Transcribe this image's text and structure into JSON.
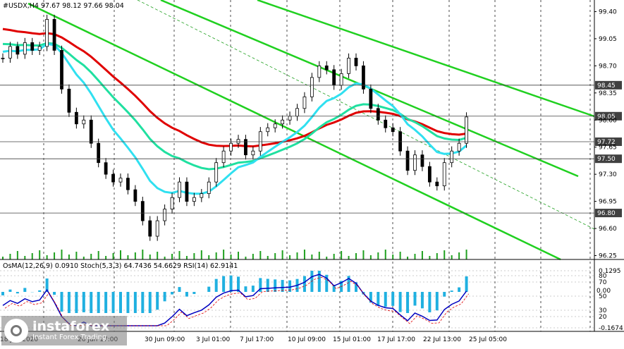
{
  "chart": {
    "header": "#USDX,H4  97.67 98.12 97.66 98.04",
    "indicator_header": "OsMA(12,26,9) 0.0910  Stoch(5,3,3) 64.7436 54.6629  RSI(14) 62.9141",
    "price_axis": [
      "99.40",
      "99.05",
      "98.70",
      "98.35",
      "98.00",
      "97.65",
      "97.30",
      "96.95",
      "96.60",
      "96.25"
    ],
    "price_levels": [
      {
        "label": "98.45",
        "value": 98.45
      },
      {
        "label": "98.05",
        "value": 98.05
      },
      {
        "label": "97.72",
        "value": 97.72
      },
      {
        "label": "97.50",
        "value": 97.5
      },
      {
        "label": "96.80",
        "value": 96.8
      }
    ],
    "indicator_axis": [
      "0.1295",
      "80",
      "70",
      "50",
      "30",
      "20",
      "-0.1674"
    ],
    "indicator_levels": [
      "0.00"
    ],
    "time_axis": [
      "18 Jun 2020",
      "26 Jun 17:00",
      "30 Jun 09:00",
      "3 Jul 01:00",
      "7 Jul 17:00",
      "10 Jul 09:00",
      "15 Jul 01:00",
      "17 Jul 17:00",
      "22 Jul 13:00",
      "25 Jul 05:00"
    ],
    "colors": {
      "ema200": "#e00000",
      "ema144": "#20e0a0",
      "ema50": "#30e0f0",
      "channel": "#20d020",
      "bar": "#000000",
      "osma": "#20b0e0",
      "stoch_main": "#0000c0",
      "stoch_signal": "#e00000"
    }
  },
  "chart_data": {
    "type": "candlestick",
    "symbol": "#USDX",
    "timeframe": "H4",
    "ohlc_last": {
      "open": 97.67,
      "high": 98.12,
      "low": 97.66,
      "close": 98.04
    },
    "price_levels": [
      98.45,
      98.05,
      97.72,
      97.5,
      96.8
    ],
    "close_series": [
      98.8,
      98.95,
      98.85,
      99.0,
      98.9,
      98.95,
      99.3,
      98.9,
      98.4,
      98.1,
      97.95,
      98.0,
      97.7,
      97.45,
      97.3,
      97.2,
      97.25,
      97.1,
      96.95,
      96.7,
      96.5,
      96.7,
      96.85,
      97.0,
      97.2,
      96.95,
      97.0,
      97.05,
      97.2,
      97.45,
      97.6,
      97.7,
      97.75,
      97.55,
      97.6,
      97.85,
      97.9,
      97.95,
      98.0,
      98.05,
      98.15,
      98.3,
      98.55,
      98.7,
      98.65,
      98.45,
      98.6,
      98.8,
      98.7,
      98.4,
      98.15,
      98.0,
      97.9,
      97.85,
      97.6,
      97.35,
      97.55,
      97.4,
      97.2,
      97.15,
      97.45,
      97.6,
      97.7,
      98.04
    ],
    "ylim": [
      96.2,
      99.55
    ],
    "indicators": {
      "osma": {
        "params": "12,26,9",
        "value": 0.091
      },
      "stoch": {
        "params": "5,3,3",
        "main": 64.7436,
        "signal": 54.6629
      },
      "rsi": {
        "params": "14",
        "value": 62.9141
      }
    },
    "indicator_ylim": [
      -0.1674,
      0.1295
    ]
  }
}
